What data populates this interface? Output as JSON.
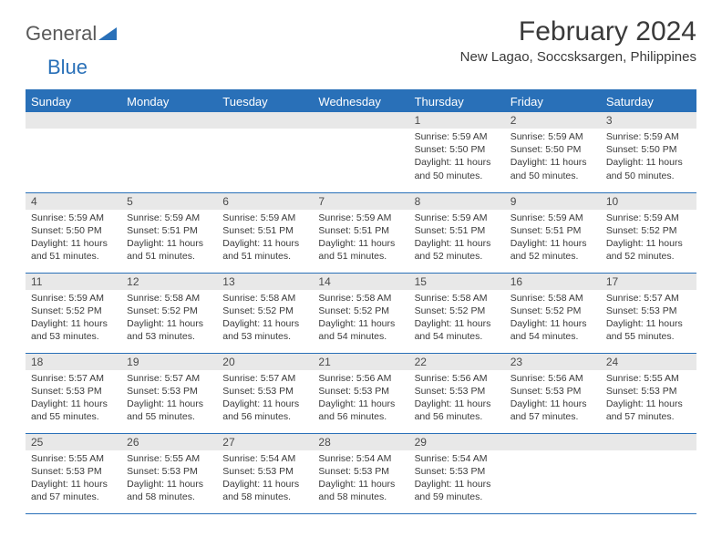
{
  "logo": {
    "text1": "General",
    "text2": "Blue"
  },
  "title": "February 2024",
  "location": "New Lagao, Soccsksargen, Philippines",
  "header_bg": "#2970b8",
  "weekdays": [
    "Sunday",
    "Monday",
    "Tuesday",
    "Wednesday",
    "Thursday",
    "Friday",
    "Saturday"
  ],
  "weeks": [
    [
      null,
      null,
      null,
      null,
      {
        "n": "1",
        "sr": "5:59 AM",
        "ss": "5:50 PM",
        "dl": "11 hours and 50 minutes."
      },
      {
        "n": "2",
        "sr": "5:59 AM",
        "ss": "5:50 PM",
        "dl": "11 hours and 50 minutes."
      },
      {
        "n": "3",
        "sr": "5:59 AM",
        "ss": "5:50 PM",
        "dl": "11 hours and 50 minutes."
      }
    ],
    [
      {
        "n": "4",
        "sr": "5:59 AM",
        "ss": "5:50 PM",
        "dl": "11 hours and 51 minutes."
      },
      {
        "n": "5",
        "sr": "5:59 AM",
        "ss": "5:51 PM",
        "dl": "11 hours and 51 minutes."
      },
      {
        "n": "6",
        "sr": "5:59 AM",
        "ss": "5:51 PM",
        "dl": "11 hours and 51 minutes."
      },
      {
        "n": "7",
        "sr": "5:59 AM",
        "ss": "5:51 PM",
        "dl": "11 hours and 51 minutes."
      },
      {
        "n": "8",
        "sr": "5:59 AM",
        "ss": "5:51 PM",
        "dl": "11 hours and 52 minutes."
      },
      {
        "n": "9",
        "sr": "5:59 AM",
        "ss": "5:51 PM",
        "dl": "11 hours and 52 minutes."
      },
      {
        "n": "10",
        "sr": "5:59 AM",
        "ss": "5:52 PM",
        "dl": "11 hours and 52 minutes."
      }
    ],
    [
      {
        "n": "11",
        "sr": "5:59 AM",
        "ss": "5:52 PM",
        "dl": "11 hours and 53 minutes."
      },
      {
        "n": "12",
        "sr": "5:58 AM",
        "ss": "5:52 PM",
        "dl": "11 hours and 53 minutes."
      },
      {
        "n": "13",
        "sr": "5:58 AM",
        "ss": "5:52 PM",
        "dl": "11 hours and 53 minutes."
      },
      {
        "n": "14",
        "sr": "5:58 AM",
        "ss": "5:52 PM",
        "dl": "11 hours and 54 minutes."
      },
      {
        "n": "15",
        "sr": "5:58 AM",
        "ss": "5:52 PM",
        "dl": "11 hours and 54 minutes."
      },
      {
        "n": "16",
        "sr": "5:58 AM",
        "ss": "5:52 PM",
        "dl": "11 hours and 54 minutes."
      },
      {
        "n": "17",
        "sr": "5:57 AM",
        "ss": "5:53 PM",
        "dl": "11 hours and 55 minutes."
      }
    ],
    [
      {
        "n": "18",
        "sr": "5:57 AM",
        "ss": "5:53 PM",
        "dl": "11 hours and 55 minutes."
      },
      {
        "n": "19",
        "sr": "5:57 AM",
        "ss": "5:53 PM",
        "dl": "11 hours and 55 minutes."
      },
      {
        "n": "20",
        "sr": "5:57 AM",
        "ss": "5:53 PM",
        "dl": "11 hours and 56 minutes."
      },
      {
        "n": "21",
        "sr": "5:56 AM",
        "ss": "5:53 PM",
        "dl": "11 hours and 56 minutes."
      },
      {
        "n": "22",
        "sr": "5:56 AM",
        "ss": "5:53 PM",
        "dl": "11 hours and 56 minutes."
      },
      {
        "n": "23",
        "sr": "5:56 AM",
        "ss": "5:53 PM",
        "dl": "11 hours and 57 minutes."
      },
      {
        "n": "24",
        "sr": "5:55 AM",
        "ss": "5:53 PM",
        "dl": "11 hours and 57 minutes."
      }
    ],
    [
      {
        "n": "25",
        "sr": "5:55 AM",
        "ss": "5:53 PM",
        "dl": "11 hours and 57 minutes."
      },
      {
        "n": "26",
        "sr": "5:55 AM",
        "ss": "5:53 PM",
        "dl": "11 hours and 58 minutes."
      },
      {
        "n": "27",
        "sr": "5:54 AM",
        "ss": "5:53 PM",
        "dl": "11 hours and 58 minutes."
      },
      {
        "n": "28",
        "sr": "5:54 AM",
        "ss": "5:53 PM",
        "dl": "11 hours and 58 minutes."
      },
      {
        "n": "29",
        "sr": "5:54 AM",
        "ss": "5:53 PM",
        "dl": "11 hours and 59 minutes."
      },
      null,
      null
    ]
  ],
  "labels": {
    "sunrise": "Sunrise:",
    "sunset": "Sunset:",
    "daylight": "Daylight:"
  }
}
